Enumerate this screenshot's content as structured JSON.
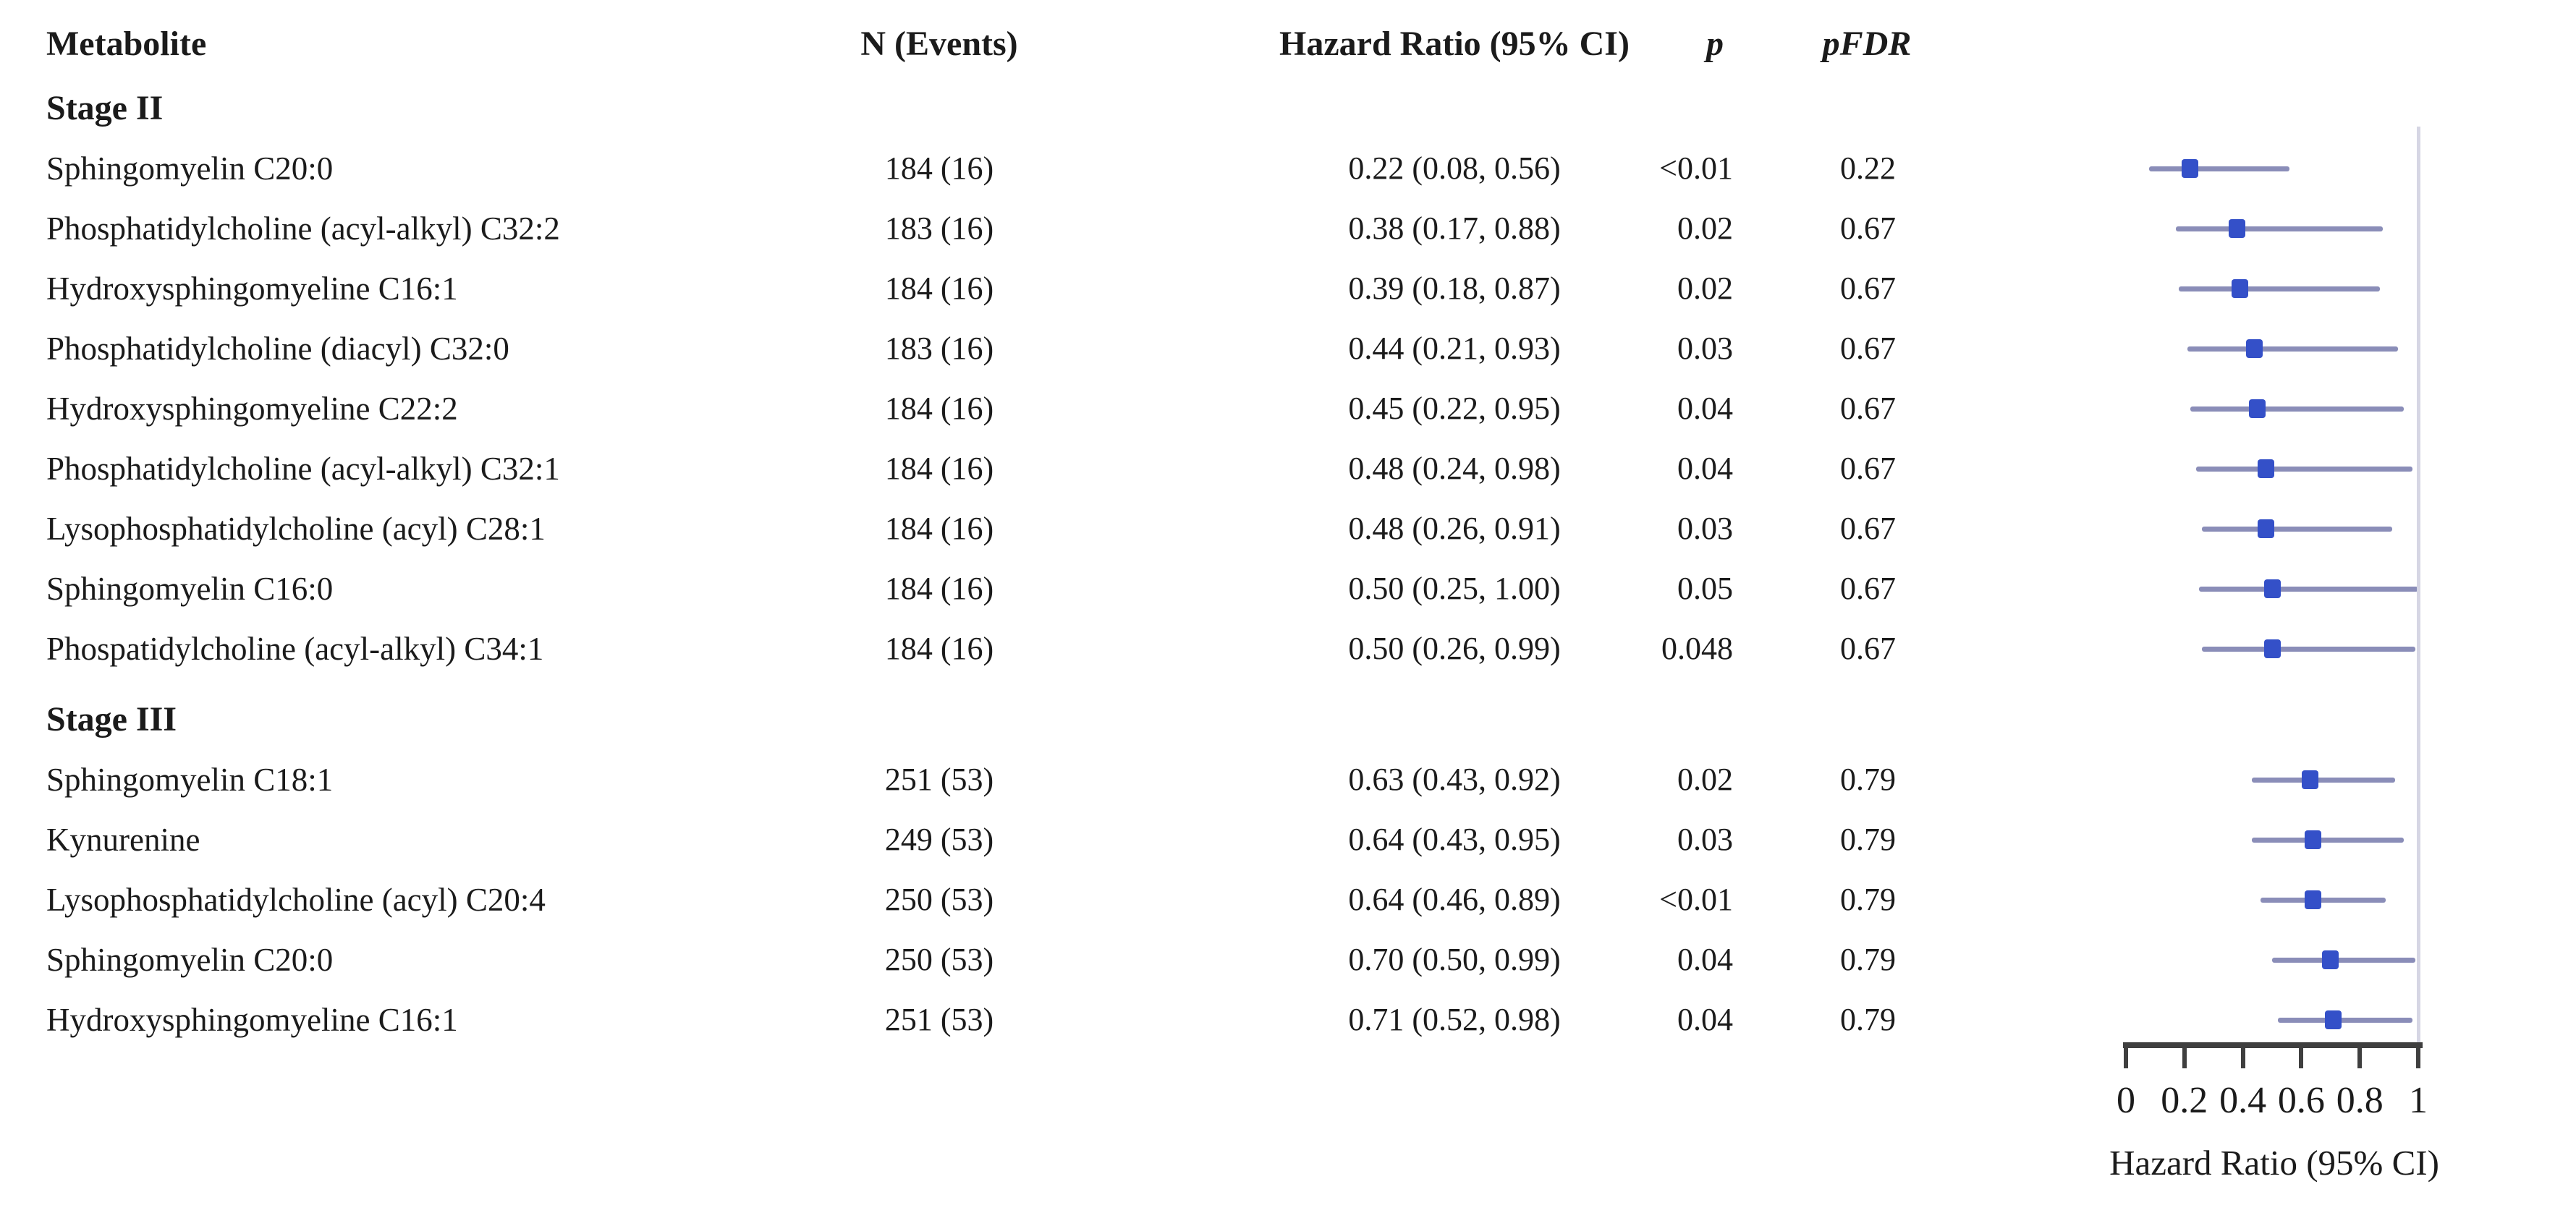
{
  "header": {
    "metabolite": "Metabolite",
    "n_events": "N (Events)",
    "hr_ci": "Hazard Ratio (95% CI)",
    "p": "p",
    "pfdr": "pFDR"
  },
  "colors": {
    "marker_blue": "#3450c8",
    "ci_line": "#8a8db8",
    "reference_line": "#d6d6e4",
    "axis": "#3f3f3f",
    "text": "#1b1b1b"
  },
  "chart_data": {
    "type": "forest",
    "x_axis": {
      "label": "Hazard Ratio (95% CI)",
      "min": 0,
      "max": 1,
      "tick_values": [
        0,
        0.2,
        0.4,
        0.6,
        0.8,
        1
      ],
      "tick_labels": [
        "0",
        "0.2",
        "0.4",
        "0.6",
        "0.8",
        "1"
      ],
      "reference_line": 1
    },
    "groups": [
      {
        "label": "Stage II",
        "rows": [
          {
            "metabolite": "Sphingomyelin C20:0",
            "n_events": "184 (16)",
            "hr_ci": "0.22 (0.08, 0.56)",
            "hr": 0.22,
            "ci_low": 0.08,
            "ci_high": 0.56,
            "p": "<0.01",
            "pfdr": "0.22"
          },
          {
            "metabolite": "Phosphatidylcholine (acyl-alkyl) C32:2",
            "n_events": "183 (16)",
            "hr_ci": "0.38 (0.17, 0.88)",
            "hr": 0.38,
            "ci_low": 0.17,
            "ci_high": 0.88,
            "p": "0.02",
            "pfdr": "0.67"
          },
          {
            "metabolite": "Hydroxysphingomyeline C16:1",
            "n_events": "184 (16)",
            "hr_ci": "0.39 (0.18, 0.87)",
            "hr": 0.39,
            "ci_low": 0.18,
            "ci_high": 0.87,
            "p": "0.02",
            "pfdr": "0.67"
          },
          {
            "metabolite": "Phosphatidylcholine (diacyl) C32:0",
            "n_events": "183 (16)",
            "hr_ci": "0.44 (0.21, 0.93)",
            "hr": 0.44,
            "ci_low": 0.21,
            "ci_high": 0.93,
            "p": "0.03",
            "pfdr": "0.67"
          },
          {
            "metabolite": "Hydroxysphingomyeline C22:2",
            "n_events": "184 (16)",
            "hr_ci": "0.45 (0.22, 0.95)",
            "hr": 0.45,
            "ci_low": 0.22,
            "ci_high": 0.95,
            "p": "0.04",
            "pfdr": "0.67"
          },
          {
            "metabolite": "Phosphatidylcholine (acyl-alkyl) C32:1",
            "n_events": "184 (16)",
            "hr_ci": "0.48 (0.24, 0.98)",
            "hr": 0.48,
            "ci_low": 0.24,
            "ci_high": 0.98,
            "p": "0.04",
            "pfdr": "0.67"
          },
          {
            "metabolite": "Lysophosphatidylcholine (acyl) C28:1",
            "n_events": "184 (16)",
            "hr_ci": "0.48 (0.26, 0.91)",
            "hr": 0.48,
            "ci_low": 0.26,
            "ci_high": 0.91,
            "p": "0.03",
            "pfdr": "0.67"
          },
          {
            "metabolite": "Sphingomyelin C16:0",
            "n_events": "184 (16)",
            "hr_ci": "0.50 (0.25, 1.00)",
            "hr": 0.5,
            "ci_low": 0.25,
            "ci_high": 1.0,
            "p": "0.05",
            "pfdr": "0.67"
          },
          {
            "metabolite": "Phospatidylcholine (acyl-alkyl) C34:1",
            "n_events": "184 (16)",
            "hr_ci": "0.50 (0.26, 0.99)",
            "hr": 0.5,
            "ci_low": 0.26,
            "ci_high": 0.99,
            "p": "0.048",
            "pfdr": "0.67"
          }
        ]
      },
      {
        "label": "Stage III",
        "rows": [
          {
            "metabolite": "Sphingomyelin C18:1",
            "n_events": "251 (53)",
            "hr_ci": "0.63 (0.43, 0.92)",
            "hr": 0.63,
            "ci_low": 0.43,
            "ci_high": 0.92,
            "p": "0.02",
            "pfdr": "0.79"
          },
          {
            "metabolite": "Kynurenine",
            "n_events": "249 (53)",
            "hr_ci": "0.64 (0.43, 0.95)",
            "hr": 0.64,
            "ci_low": 0.43,
            "ci_high": 0.95,
            "p": "0.03",
            "pfdr": "0.79"
          },
          {
            "metabolite": "Lysophosphatidylcholine (acyl) C20:4",
            "n_events": "250 (53)",
            "hr_ci": "0.64 (0.46, 0.89)",
            "hr": 0.64,
            "ci_low": 0.46,
            "ci_high": 0.89,
            "p": "<0.01",
            "pfdr": "0.79"
          },
          {
            "metabolite": "Sphingomyelin C20:0",
            "n_events": "250 (53)",
            "hr_ci": "0.70 (0.50, 0.99)",
            "hr": 0.7,
            "ci_low": 0.5,
            "ci_high": 0.99,
            "p": "0.04",
            "pfdr": "0.79"
          },
          {
            "metabolite": "Hydroxysphingomyeline C16:1",
            "n_events": "251 (53)",
            "hr_ci": "0.71 (0.52, 0.98)",
            "hr": 0.71,
            "ci_low": 0.52,
            "ci_high": 0.98,
            "p": "0.04",
            "pfdr": "0.79"
          }
        ]
      }
    ]
  }
}
